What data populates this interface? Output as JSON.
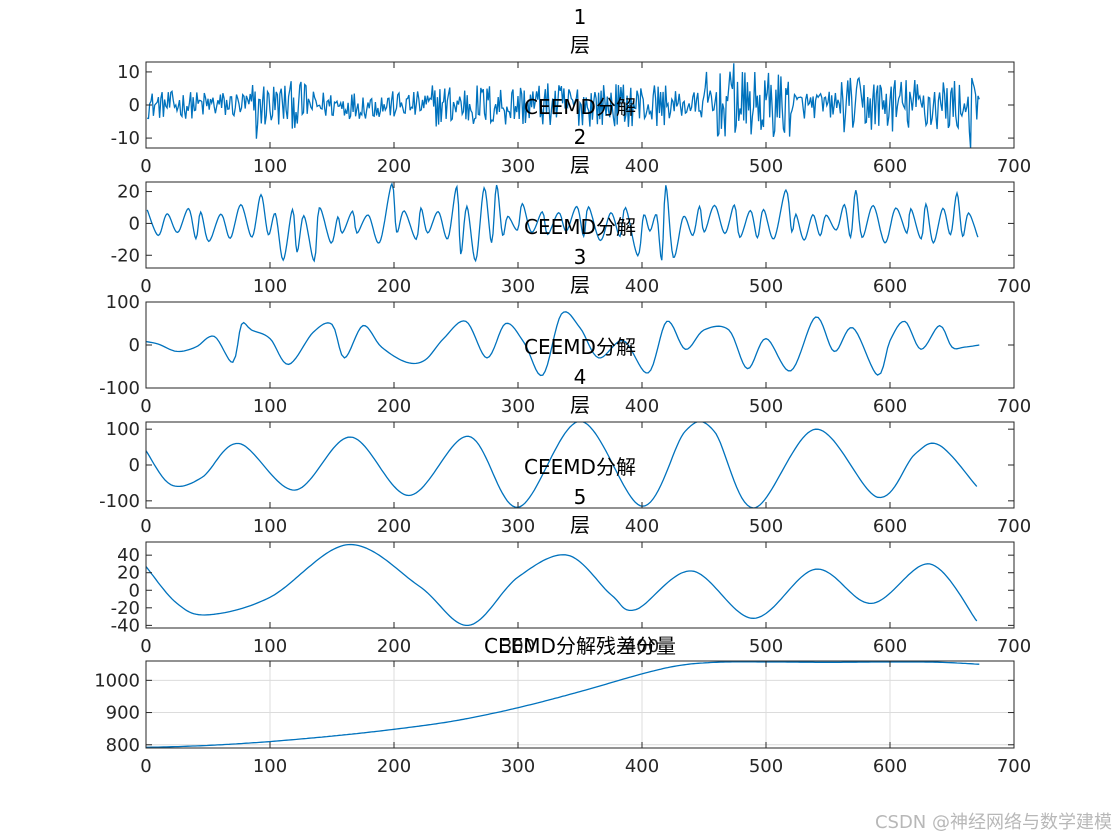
{
  "figure": {
    "line_color": "#0072BD",
    "axes_color": "#262626",
    "grid_color": "#DCDCDC",
    "watermark": "CSDN @神经网络与数学建模"
  },
  "chart_data": [
    {
      "type": "line",
      "title_lines": [
        "1",
        "层",
        "CEEMD分解"
      ],
      "xlim": [
        0,
        700
      ],
      "ylim": [
        -13,
        13
      ],
      "xticks": [
        0,
        100,
        200,
        300,
        400,
        500,
        600,
        700
      ],
      "yticks": [
        -10,
        0,
        10
      ],
      "grid": false,
      "series": [
        {
          "x_range": [
            1,
            672
          ],
          "wave": "noise",
          "amplitude": 12
        }
      ]
    },
    {
      "type": "line",
      "title_lines": [
        "2",
        "层",
        "CEEMD分解"
      ],
      "xlim": [
        0,
        700
      ],
      "ylim": [
        -28,
        26
      ],
      "xticks": [
        0,
        100,
        200,
        300,
        400,
        500,
        600,
        700
      ],
      "yticks": [
        -20,
        0,
        20
      ],
      "grid": false,
      "series": [
        {
          "x_range": [
            1,
            672
          ],
          "wave": "oscillation",
          "amplitude": 25
        }
      ]
    },
    {
      "type": "line",
      "title_lines": [
        "3",
        "层",
        "CEEMD分解"
      ],
      "xlim": [
        0,
        700
      ],
      "ylim": [
        -100,
        100
      ],
      "xticks": [
        0,
        100,
        200,
        300,
        400,
        500,
        600,
        700
      ],
      "yticks": [
        -100,
        0,
        100
      ],
      "grid": false,
      "series": [
        {
          "x": [
            0,
            10,
            25,
            40,
            55,
            70,
            77,
            85,
            100,
            115,
            135,
            150,
            160,
            175,
            190,
            210,
            225,
            240,
            258,
            275,
            290,
            305,
            320,
            335,
            350,
            365,
            385,
            405,
            420,
            435,
            450,
            470,
            485,
            500,
            520,
            540,
            555,
            570,
            590,
            600,
            612,
            625,
            640,
            650,
            660,
            672
          ],
          "y": [
            8,
            2,
            -15,
            -5,
            20,
            -40,
            48,
            35,
            15,
            -45,
            30,
            48,
            -30,
            45,
            -5,
            -40,
            -35,
            15,
            55,
            -30,
            50,
            5,
            -70,
            72,
            40,
            -30,
            10,
            -65,
            55,
            -10,
            35,
            35,
            -55,
            15,
            -60,
            65,
            -15,
            40,
            -70,
            10,
            55,
            -10,
            45,
            -5,
            -5,
            0
          ]
        }
      ]
    },
    {
      "type": "line",
      "title_lines": [
        "4",
        "层",
        "CEEMD分解"
      ],
      "xlim": [
        0,
        700
      ],
      "ylim": [
        -120,
        120
      ],
      "xticks": [
        0,
        100,
        200,
        300,
        400,
        500,
        600,
        700
      ],
      "yticks": [
        -100,
        0,
        100
      ],
      "grid": false,
      "series": [
        {
          "x": [
            0,
            20,
            45,
            75,
            120,
            165,
            212,
            260,
            300,
            350,
            400,
            435,
            458,
            490,
            540,
            590,
            620,
            640,
            670
          ],
          "y": [
            40,
            -55,
            -35,
            60,
            -70,
            78,
            -85,
            80,
            -118,
            122,
            -115,
            95,
            95,
            -120,
            100,
            -90,
            30,
            55,
            -60
          ]
        }
      ]
    },
    {
      "type": "line",
      "title_lines": [
        "5",
        "层"
      ],
      "xlim": [
        0,
        700
      ],
      "ylim": [
        -43,
        55
      ],
      "xticks": [
        0,
        100,
        200,
        300,
        400,
        500,
        600,
        700
      ],
      "yticks": [
        -40,
        -20,
        0,
        20,
        40
      ],
      "grid": false,
      "series": [
        {
          "x": [
            0,
            25,
            50,
            100,
            163,
            220,
            260,
            300,
            340,
            375,
            395,
            440,
            490,
            540,
            585,
            632,
            670
          ],
          "y": [
            27,
            -15,
            -28,
            -8,
            52,
            5,
            -40,
            15,
            40,
            -5,
            -22,
            22,
            -32,
            24,
            -15,
            30,
            -35
          ]
        }
      ]
    },
    {
      "type": "line",
      "title_lines": [
        "CEEMD分解残差分量"
      ],
      "xlim": [
        0,
        700
      ],
      "ylim": [
        790,
        1060
      ],
      "xticks": [
        0,
        100,
        200,
        300,
        400,
        500,
        600,
        700
      ],
      "yticks": [
        800,
        900,
        1000
      ],
      "grid": true,
      "series": [
        {
          "x": [
            0,
            30,
            60,
            100,
            150,
            200,
            250,
            300,
            350,
            400,
            430,
            460,
            500,
            550,
            600,
            640,
            672
          ],
          "y": [
            792,
            795,
            800,
            810,
            827,
            848,
            875,
            915,
            965,
            1020,
            1046,
            1056,
            1057,
            1056,
            1057,
            1056,
            1050
          ]
        }
      ]
    }
  ]
}
